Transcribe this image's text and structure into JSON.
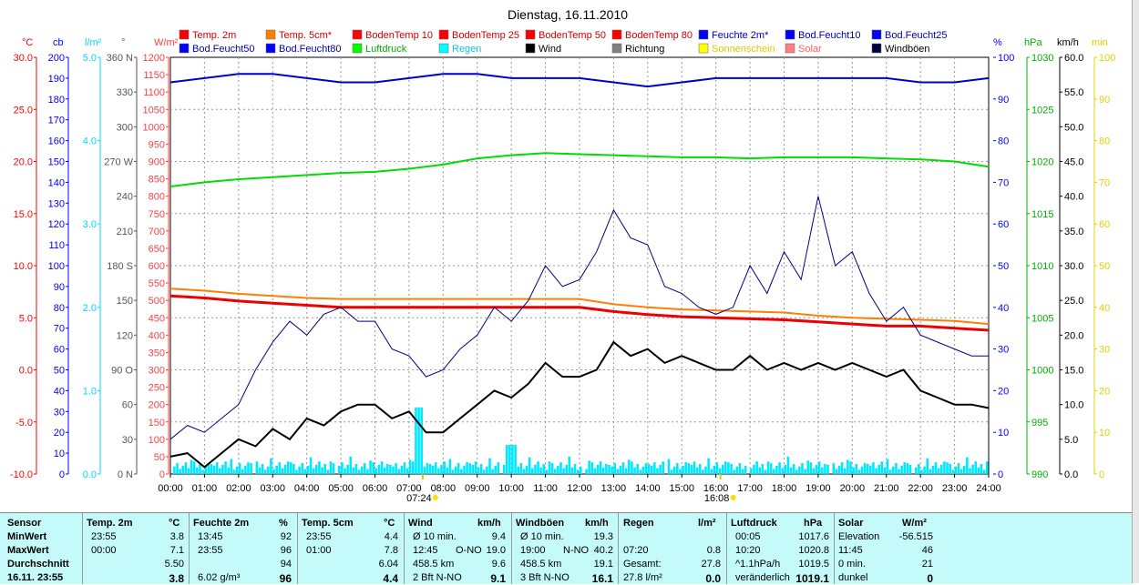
{
  "title": "Dienstag, 16.11.2010",
  "colors": {
    "temp2m": "#ff0000",
    "temp5cm": "#ff8000",
    "boden": "#cc0000",
    "feuchte": "#0000cc",
    "luftdruck": "#00dd00",
    "regen": "#00e8ff",
    "wind": "#000000",
    "richtung": "#666666",
    "sonne": "#ffff00",
    "solar": "#ff6666",
    "boeen": "#000080",
    "grid": "#888888"
  },
  "legend": [
    {
      "label": "Temp. 2m",
      "color": "#ff0000",
      "key": "temp2m"
    },
    {
      "label": "Temp. 5cm*",
      "color": "#ff8000",
      "key": "temp5cm"
    },
    {
      "label": "BodenTemp 10",
      "color": "#ff0000",
      "key": "bt10"
    },
    {
      "label": "BodenTemp 25",
      "color": "#ff0000",
      "key": "bt25"
    },
    {
      "label": "BodenTemp 50",
      "color": "#ff0000",
      "key": "bt50"
    },
    {
      "label": "BodenTemp 80",
      "color": "#ff0000",
      "key": "bt80"
    },
    {
      "label": "Feuchte 2m*",
      "color": "#0000ff",
      "key": "feuchte"
    },
    {
      "label": "Bod.Feucht10",
      "color": "#0000ff",
      "key": "bf10"
    },
    {
      "label": "Bod.Feucht25",
      "color": "#0000ff",
      "key": "bf25"
    },
    {
      "label": "Bod.Feucht50",
      "color": "#0000ff",
      "key": "bf50"
    },
    {
      "label": "Bod.Feucht80",
      "color": "#0000ff",
      "key": "bf80"
    },
    {
      "label": "Luftdruck",
      "color": "#00ff00",
      "key": "luftdruck"
    },
    {
      "label": "Regen",
      "color": "#00ffff",
      "key": "regen"
    },
    {
      "label": "Wind",
      "color": "#000000",
      "key": "wind"
    },
    {
      "label": "Richtung",
      "color": "#808080",
      "key": "richtung"
    },
    {
      "label": "Sonnenschein",
      "color": "#ffff00",
      "key": "sonne"
    },
    {
      "label": "Solar",
      "color": "#ff8080",
      "key": "solar"
    },
    {
      "label": "Windböen",
      "color": "#000040",
      "key": "boeen"
    }
  ],
  "chart_data": {
    "type": "line",
    "title": "Dienstag, 16.11.2010",
    "x_ticks": [
      "00:00",
      "01:00",
      "02:00",
      "03:00",
      "04:00",
      "05:00",
      "06:00",
      "07:00",
      "08:00",
      "09:00",
      "10:00",
      "11:00",
      "12:00",
      "13:00",
      "14:00",
      "15:00",
      "16:00",
      "17:00",
      "18:00",
      "19:00",
      "20:00",
      "21:00",
      "22:00",
      "23:00",
      "24:00"
    ],
    "sunrise": "07:24",
    "sunset": "16:08",
    "left_axes": [
      {
        "unit": "°C",
        "color": "#ff0000",
        "ticks": [
          "30.0",
          "25.0",
          "20.0",
          "15.0",
          "10.0",
          "5.0",
          "0.0",
          "-5.0",
          "-10.0"
        ],
        "range": [
          -10,
          30
        ]
      },
      {
        "unit": "cb",
        "color": "#0000ff",
        "ticks": [
          "200",
          "190",
          "180",
          "170",
          "160",
          "150",
          "140",
          "130",
          "120",
          "110",
          "100",
          "90",
          "80",
          "70",
          "60",
          "50",
          "40",
          "30",
          "20",
          "10",
          "0"
        ],
        "range": [
          0,
          200
        ]
      },
      {
        "unit": "l/m²",
        "color": "#00d8ff",
        "ticks": [
          "5.0",
          "4.0",
          "3.0",
          "2.0",
          "1.0",
          "0.0"
        ],
        "range": [
          0,
          5
        ]
      },
      {
        "unit": "°",
        "color": "#555555",
        "ticks": [
          "360 N",
          "330",
          "300",
          "270 W",
          "240",
          "210",
          "180 S",
          "150",
          "120",
          "90 O",
          "60",
          "30",
          "0 N"
        ],
        "range": [
          0,
          360
        ]
      },
      {
        "unit": "W/m²",
        "color": "#ff4040",
        "ticks": [
          "1200",
          "1150",
          "1100",
          "1050",
          "1000",
          "950",
          "900",
          "850",
          "800",
          "750",
          "700",
          "650",
          "600",
          "550",
          "500",
          "450",
          "400",
          "350",
          "300",
          "250",
          "200",
          "150",
          "100",
          "50",
          "0"
        ],
        "range": [
          0,
          1200
        ]
      }
    ],
    "right_axes": [
      {
        "unit": "%",
        "color": "#0000ff",
        "ticks": [
          "100",
          "90",
          "80",
          "70",
          "60",
          "50",
          "40",
          "30",
          "20",
          "10",
          "0"
        ],
        "range": [
          0,
          100
        ]
      },
      {
        "unit": "hPa",
        "color": "#00b000",
        "ticks": [
          "1030",
          "1025",
          "1020",
          "1015",
          "1010",
          "1005",
          "1000",
          "995",
          "990"
        ],
        "range": [
          990,
          1030
        ]
      },
      {
        "unit": "km/h",
        "color": "#000000",
        "ticks": [
          "60.0",
          "55.0",
          "50.0",
          "45.0",
          "40.0",
          "35.0",
          "30.0",
          "25.0",
          "20.0",
          "15.0",
          "10.0",
          "5.0",
          "0.0"
        ],
        "range": [
          0,
          60
        ]
      },
      {
        "unit": "min",
        "color": "#e0d000",
        "ticks": [
          "100",
          "90",
          "80",
          "70",
          "60",
          "50",
          "40",
          "30",
          "20",
          "10",
          "0"
        ],
        "range": [
          0,
          100
        ]
      }
    ],
    "series": [
      {
        "name": "Temp. 2m",
        "axis": "°C",
        "x": [
          0,
          1,
          2,
          3,
          4,
          5,
          6,
          7,
          8,
          9,
          10,
          11,
          12,
          13,
          14,
          15,
          16,
          17,
          18,
          19,
          20,
          21,
          22,
          23,
          24
        ],
        "values": [
          7.1,
          6.9,
          6.6,
          6.4,
          6.2,
          6.0,
          6.0,
          6.0,
          6.0,
          6.0,
          6.0,
          6.0,
          6.0,
          5.6,
          5.3,
          5.1,
          5.0,
          4.9,
          4.8,
          4.6,
          4.4,
          4.2,
          4.2,
          4.0,
          3.8
        ]
      },
      {
        "name": "Temp. 5cm*",
        "axis": "°C",
        "x": [
          0,
          1,
          2,
          3,
          4,
          5,
          6,
          7,
          8,
          9,
          10,
          11,
          12,
          13,
          14,
          15,
          16,
          17,
          18,
          19,
          20,
          21,
          22,
          23,
          24
        ],
        "values": [
          7.8,
          7.6,
          7.3,
          7.1,
          6.9,
          6.8,
          6.8,
          6.8,
          6.8,
          6.8,
          6.8,
          6.8,
          6.8,
          6.3,
          6.0,
          5.8,
          5.7,
          5.6,
          5.5,
          5.2,
          5.0,
          4.9,
          4.8,
          4.7,
          4.4
        ]
      },
      {
        "name": "Feuchte 2m*",
        "axis": "%",
        "x": [
          0,
          1,
          2,
          3,
          4,
          5,
          6,
          7,
          8,
          9,
          10,
          11,
          12,
          13,
          14,
          15,
          16,
          17,
          18,
          19,
          20,
          21,
          22,
          23,
          24
        ],
        "values": [
          94,
          95,
          96,
          96,
          95,
          94,
          94,
          95,
          96,
          96,
          95,
          95,
          95,
          94,
          93,
          94,
          95,
          95,
          95,
          95,
          95,
          95,
          94,
          94,
          95
        ]
      },
      {
        "name": "Luftdruck",
        "axis": "hPa",
        "x": [
          0,
          1,
          2,
          3,
          4,
          5,
          6,
          7,
          8,
          9,
          10,
          11,
          12,
          13,
          14,
          15,
          16,
          17,
          18,
          19,
          20,
          21,
          22,
          23,
          24
        ],
        "values": [
          1017.6,
          1018.0,
          1018.3,
          1018.5,
          1018.7,
          1018.9,
          1019.0,
          1019.3,
          1019.7,
          1020.3,
          1020.6,
          1020.8,
          1020.7,
          1020.6,
          1020.5,
          1020.4,
          1020.4,
          1020.3,
          1020.4,
          1020.4,
          1020.4,
          1020.3,
          1020.2,
          1020.0,
          1019.5
        ]
      },
      {
        "name": "Wind",
        "axis": "km/h",
        "x": [
          0,
          0.5,
          1,
          1.5,
          2,
          2.5,
          3,
          3.5,
          4,
          4.5,
          5,
          5.5,
          6,
          6.5,
          7,
          7.5,
          8,
          8.5,
          9,
          9.5,
          10,
          10.5,
          11,
          11.5,
          12,
          12.5,
          13,
          13.5,
          14,
          14.5,
          15,
          15.5,
          16,
          16.5,
          17,
          17.5,
          18,
          18.5,
          19,
          19.5,
          20,
          20.5,
          21,
          21.5,
          22,
          22.5,
          23,
          23.5,
          24
        ],
        "values": [
          2.5,
          3,
          1,
          3,
          5,
          4,
          6.5,
          5,
          8,
          7,
          9,
          10,
          10,
          8,
          9,
          6,
          6,
          8,
          10,
          12,
          11,
          13,
          16,
          14,
          14,
          15,
          19,
          17,
          18,
          16,
          17,
          16,
          15,
          15,
          17,
          15,
          16,
          15,
          16,
          15,
          16,
          15,
          14,
          15,
          12,
          11,
          10,
          10,
          9.5
        ]
      },
      {
        "name": "Windböen",
        "axis": "km/h",
        "x": [
          0,
          0.5,
          1,
          1.5,
          2,
          2.5,
          3,
          3.5,
          4,
          4.5,
          5,
          5.5,
          6,
          6.5,
          7,
          7.5,
          8,
          8.5,
          9,
          9.5,
          10,
          10.5,
          11,
          11.5,
          12,
          12.5,
          13,
          13.5,
          14,
          14.5,
          15,
          15.5,
          16,
          16.5,
          17,
          17.5,
          18,
          18.5,
          19,
          19.5,
          20,
          20.5,
          21,
          21.5,
          22,
          22.5,
          23,
          23.5,
          24
        ],
        "values": [
          5,
          7,
          6,
          8,
          10,
          15,
          19,
          22,
          20,
          23,
          24,
          22,
          22,
          18,
          17,
          14,
          15,
          18,
          20,
          24,
          22,
          25,
          30,
          27,
          28,
          32,
          38,
          34,
          33,
          27,
          26,
          24,
          23,
          24,
          30,
          26,
          32,
          28,
          40,
          30,
          32,
          26,
          22,
          24,
          20,
          19,
          18,
          17,
          17
        ]
      }
    ],
    "bars": {
      "name": "Regen",
      "axis": "l/m²",
      "note": "many small rain bars"
    }
  },
  "stats": {
    "headers": {
      "sensor": "Sensor",
      "temp2m": "Temp. 2m",
      "temp2m_unit": "°C",
      "feuchte": "Feuchte 2m",
      "feuchte_unit": "%",
      "temp5": "Temp. 5cm",
      "temp5_unit": "°C",
      "wind": "Wind",
      "wind_unit": "km/h",
      "boeen": "Windböen",
      "boeen_unit": "km/h",
      "regen": "Regen",
      "regen_unit": "l/m²",
      "druck": "Luftdruck",
      "druck_unit": "hPa",
      "solar": "Solar",
      "solar_unit": "W/m²"
    },
    "rows": [
      {
        "label": "MinWert",
        "t2_time": "23:55",
        "t2_val": "3.8",
        "f_time": "13:45",
        "f_val": "92",
        "t5_time": "23:55",
        "t5_val": "4.4",
        "w_desc": "Ø 10 min.",
        "w_dir": "",
        "w_val": "9.4",
        "b_desc": "Ø 10 min.",
        "b_dir": "",
        "b_val": "19.3",
        "r_desc": "",
        "r_val": "",
        "d_time": "00:05",
        "d_val": "1017.6",
        "s_desc": "Elevation",
        "s_val": "-56.515"
      },
      {
        "label": "MaxWert",
        "t2_time": "00:00",
        "t2_val": "7.1",
        "f_time": "23:55",
        "f_val": "96",
        "t5_time": "01:00",
        "t5_val": "7.8",
        "w_desc": "12:45",
        "w_dir": "O-NO",
        "w_val": "19.0",
        "b_desc": "19:00",
        "b_dir": "N-NO",
        "b_val": "40.2",
        "r_desc": "07:20",
        "r_val": "0.8",
        "d_time": "10:20",
        "d_val": "1020.8",
        "s_desc": "11:45",
        "s_val": "46"
      },
      {
        "label": "Durchschnitt",
        "t2_time": "",
        "t2_val": "5.50",
        "f_time": "",
        "f_val": "94",
        "t5_time": "",
        "t5_val": "6.04",
        "w_desc": "458.5 km",
        "w_dir": "",
        "w_val": "9.6",
        "b_desc": "458.5 km",
        "b_dir": "",
        "b_val": "19.1",
        "r_desc": "Gesamt:",
        "r_val": "27.8",
        "d_time": "^1.1hPa/h",
        "d_val": "1019.5",
        "s_desc": "0 min.",
        "s_val": "21"
      },
      {
        "label": "16.11. 23:55",
        "t2_time": "",
        "t2_val": "3.8",
        "f_time": "6.02 g/m³",
        "f_val": "96",
        "t5_time": "",
        "t5_val": "4.4",
        "w_desc": "2 Bft N-NO",
        "w_dir": "",
        "w_val": "9.1",
        "b_desc": "3 Bft N-NO",
        "b_dir": "",
        "b_val": "16.1",
        "r_desc": "27.8 l/m²",
        "r_val": "0.0",
        "d_time": "veränderlich",
        "d_val": "1019.1",
        "s_desc": "dunkel",
        "s_val": "0"
      }
    ]
  }
}
